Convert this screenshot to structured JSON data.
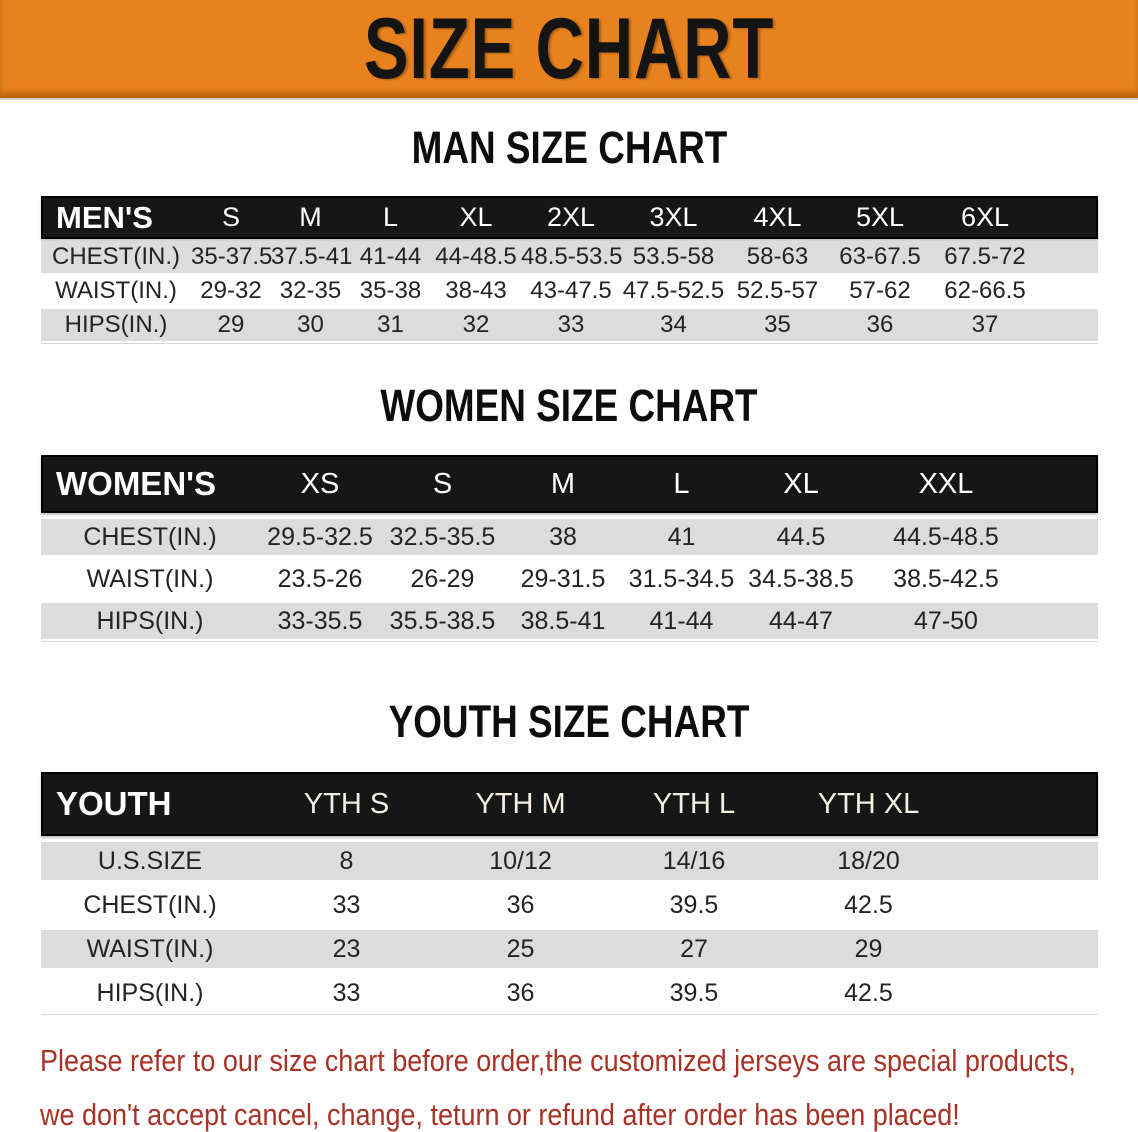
{
  "banner": {
    "title": "SIZE CHART"
  },
  "colors": {
    "banner_bg": "#E8821E",
    "banner_text": "#141414",
    "table_header_bg": "#161616",
    "table_header_text": "#FFFFFF",
    "row_gray": "#DCDCDC",
    "disclaimer_red": "#A93226"
  },
  "sections": [
    {
      "heading": "MAN SIZE CHART",
      "group_label": "MEN'S",
      "columns": [
        "S",
        "M",
        "L",
        "XL",
        "2XL",
        "3XL",
        "4XL",
        "5XL",
        "6XL"
      ],
      "rows": [
        {
          "label": "CHEST(IN.)",
          "values": [
            "35-37.5",
            "37.5-41",
            "41-44",
            "44-48.5",
            "48.5-53.5",
            "53.5-58",
            "58-63",
            "63-67.5",
            "67.5-72"
          ]
        },
        {
          "label": "WAIST(IN.)",
          "values": [
            "29-32",
            "32-35",
            "35-38",
            "38-43",
            "43-47.5",
            "47.5-52.5",
            "52.5-57",
            "57-62",
            "62-66.5"
          ]
        },
        {
          "label": "HIPS(IN.)",
          "values": [
            "29",
            "30",
            "31",
            "32",
            "33",
            "34",
            "35",
            "36",
            "37"
          ]
        }
      ]
    },
    {
      "heading": "WOMEN SIZE CHART",
      "group_label": "WOMEN'S",
      "columns": [
        "XS",
        "S",
        "M",
        "L",
        "XL",
        "XXL"
      ],
      "rows": [
        {
          "label": "CHEST(IN.)",
          "values": [
            "29.5-32.5",
            "32.5-35.5",
            "38",
            "41",
            "44.5",
            "44.5-48.5"
          ]
        },
        {
          "label": "WAIST(IN.)",
          "values": [
            "23.5-26",
            "26-29",
            "29-31.5",
            "31.5-34.5",
            "34.5-38.5",
            "38.5-42.5"
          ]
        },
        {
          "label": "HIPS(IN.)",
          "values": [
            "33-35.5",
            "35.5-38.5",
            "38.5-41",
            "41-44",
            "44-47",
            "47-50"
          ]
        }
      ]
    },
    {
      "heading": "YOUTH SIZE CHART",
      "group_label": "YOUTH",
      "columns": [
        "YTH S",
        "YTH M",
        "YTH L",
        "YTH XL"
      ],
      "rows": [
        {
          "label": "U.S.SIZE",
          "values": [
            "8",
            "10/12",
            "14/16",
            "18/20"
          ]
        },
        {
          "label": "CHEST(IN.)",
          "values": [
            "33",
            "36",
            "39.5",
            "42.5"
          ]
        },
        {
          "label": "WAIST(IN.)",
          "values": [
            "23",
            "25",
            "27",
            "29"
          ]
        },
        {
          "label": "HIPS(IN.)",
          "values": [
            "33",
            "36",
            "39.5",
            "42.5"
          ]
        }
      ]
    }
  ],
  "disclaimer": {
    "line1": "Please refer to our size chart before order,the customized jerseys are special products,",
    "line2": "we don't accept cancel, change, teturn or refund after order has been placed!"
  }
}
